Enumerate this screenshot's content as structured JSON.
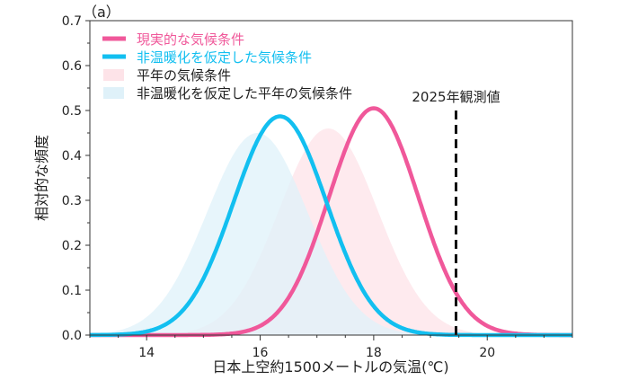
{
  "chart_data": {
    "type": "line",
    "panel_label": "（a）",
    "xlabel": "日本上空約1500メートルの気温(℃)",
    "ylabel": "相対的な頻度",
    "xlim": [
      13,
      21.5
    ],
    "ylim": [
      0,
      0.7
    ],
    "xticks": [
      14,
      16,
      18,
      20
    ],
    "yticks": [
      0.0,
      0.1,
      0.2,
      0.3,
      0.4,
      0.5,
      0.6,
      0.7
    ],
    "ytick_labels": [
      "0.0",
      "0.1",
      "0.2",
      "0.3",
      "0.4",
      "0.5",
      "0.6",
      "0.7"
    ],
    "grid": false,
    "legend_position": "top-left",
    "series": [
      {
        "name": "現実的な気候条件",
        "style": "line",
        "color": "#f0589a",
        "mean": 18.0,
        "sd": 0.79,
        "peak": 0.505
      },
      {
        "name": "非温暖化を仮定した気候条件",
        "style": "line",
        "color": "#12bff0",
        "mean": 16.35,
        "sd": 0.82,
        "peak": 0.487
      },
      {
        "name": "平年の気候条件",
        "style": "fill",
        "color": "#fde3e8",
        "mean": 17.2,
        "sd": 0.867,
        "peak": 0.46
      },
      {
        "name": "非温暖化を仮定した平年の気候条件",
        "style": "fill",
        "color": "#dff1f9",
        "mean": 15.95,
        "sd": 0.887,
        "peak": 0.45
      }
    ],
    "annotation": {
      "label": "2025年観測値",
      "x": 19.45,
      "y_top": 0.5
    }
  }
}
